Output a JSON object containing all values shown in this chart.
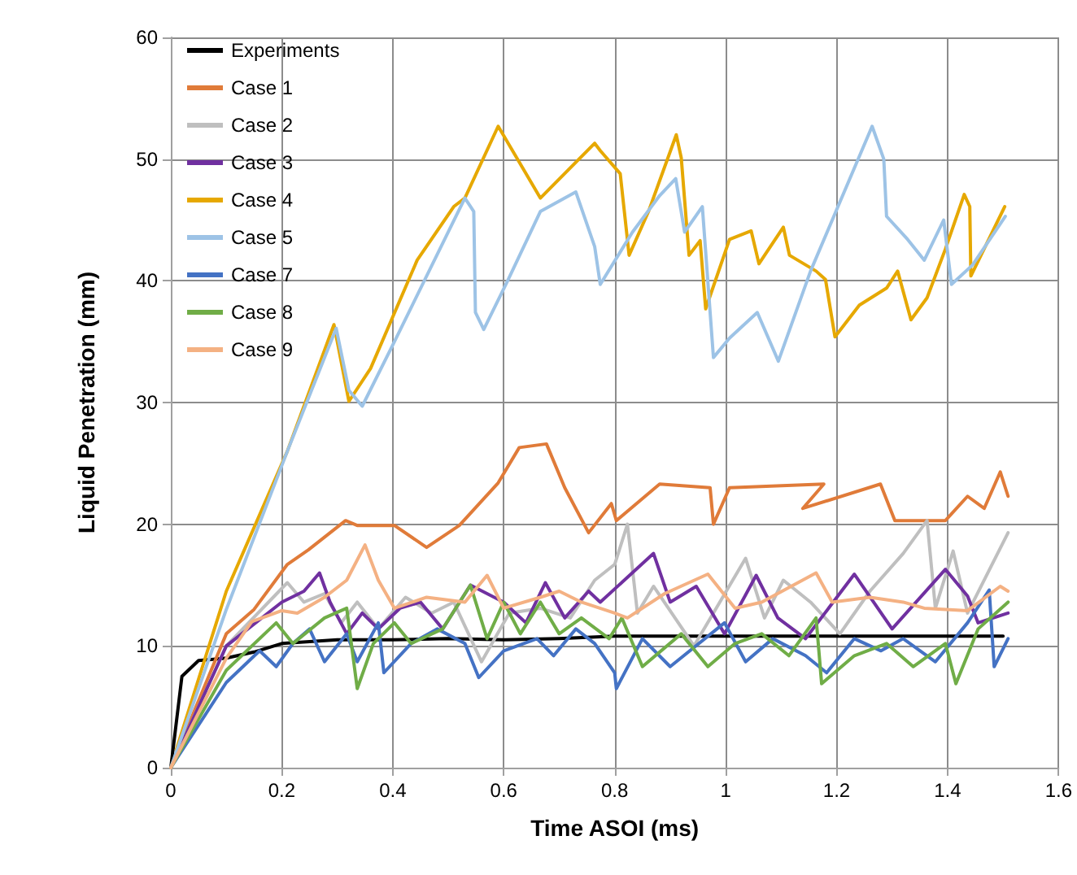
{
  "chart_data": {
    "type": "line",
    "xlabel": "Time ASOI (ms)",
    "ylabel": "Liquid Penetration (mm)",
    "xlim": [
      0,
      1.6
    ],
    "xticks": [
      0,
      0.2,
      0.4,
      0.6,
      0.8,
      1,
      1.2,
      1.4,
      1.6
    ],
    "ylim": [
      0,
      60
    ],
    "yticks": [
      0,
      10,
      20,
      30,
      40,
      50,
      60
    ],
    "grid": true,
    "legend": "top left",
    "marker": "none",
    "line_style": "solid",
    "series": [
      {
        "name": "Experiments",
        "color": "#000000",
        "x": [
          0,
          0.02,
          0.05,
          0.1,
          0.15,
          0.2,
          0.3,
          0.4,
          0.5,
          0.6,
          0.7,
          0.8,
          1.0,
          1.2,
          1.5
        ],
        "values": [
          0,
          7.5,
          8.8,
          9.0,
          9.5,
          10.2,
          10.5,
          10.5,
          10.6,
          10.5,
          10.6,
          10.8,
          10.8,
          10.8,
          10.8
        ]
      },
      {
        "name": "Case 1",
        "color": "#e07b39",
        "x": [
          0,
          0.1,
          0.15,
          0.21,
          0.248,
          0.315,
          0.336,
          0.403,
          0.461,
          0.52,
          0.59,
          0.628,
          0.677,
          0.71,
          0.753,
          0.794,
          0.803,
          0.881,
          0.972,
          0.978,
          1.007,
          1.177,
          1.139,
          1.279,
          1.305,
          1.396,
          1.436,
          1.466,
          1.495,
          1.509
        ],
        "values": [
          0,
          11,
          13,
          16.7,
          17.9,
          20.3,
          19.9,
          19.9,
          18.1,
          19.9,
          23.4,
          26.3,
          26.6,
          23,
          19.3,
          21.7,
          20.3,
          23.3,
          23,
          20,
          23,
          23.3,
          21.3,
          23.3,
          20.3,
          20.3,
          22.3,
          21.3,
          24.3,
          22.3
        ]
      },
      {
        "name": "Case 2",
        "color": "#bfbfbf",
        "x": [
          0,
          0.1,
          0.21,
          0.24,
          0.277,
          0.307,
          0.336,
          0.374,
          0.423,
          0.47,
          0.51,
          0.56,
          0.61,
          0.666,
          0.72,
          0.764,
          0.8,
          0.823,
          0.841,
          0.87,
          0.943,
          1.036,
          1.07,
          1.104,
          1.153,
          1.206,
          1.26,
          1.32,
          1.363,
          1.378,
          1.41,
          1.436,
          1.509
        ],
        "values": [
          0,
          10,
          15.2,
          13.6,
          14.3,
          11.9,
          13.6,
          11.4,
          14,
          12.7,
          13.6,
          8.7,
          12.7,
          13.1,
          12.3,
          15.4,
          16.7,
          20,
          12.7,
          14.9,
          10,
          17.2,
          12.3,
          15.4,
          13.6,
          11,
          14.5,
          17.6,
          20.3,
          13.1,
          17.8,
          12.7,
          19.3
        ]
      },
      {
        "name": "Case 3",
        "color": "#7030a0",
        "x": [
          0,
          0.1,
          0.2,
          0.24,
          0.268,
          0.287,
          0.317,
          0.345,
          0.374,
          0.413,
          0.45,
          0.49,
          0.54,
          0.6,
          0.64,
          0.675,
          0.71,
          0.753,
          0.774,
          0.87,
          0.9,
          0.947,
          0.998,
          1.055,
          1.094,
          1.144,
          1.232,
          1.3,
          1.396,
          1.436,
          1.455,
          1.509
        ],
        "values": [
          0,
          10,
          13.6,
          14.5,
          16,
          13.6,
          11,
          12.7,
          11.4,
          13.1,
          13.6,
          11.4,
          15,
          13.6,
          11.9,
          15.2,
          12.3,
          14.5,
          13.6,
          17.6,
          13.6,
          14.9,
          11,
          15.8,
          12.3,
          10.6,
          15.9,
          11.4,
          16.3,
          14.1,
          11.9,
          12.7
        ]
      },
      {
        "name": "Case 4",
        "color": "#e6a800",
        "x": [
          0.01,
          0.1,
          0.21,
          0.294,
          0.321,
          0.36,
          0.444,
          0.51,
          0.53,
          0.59,
          0.666,
          0.764,
          0.774,
          0.81,
          0.826,
          0.861,
          0.911,
          0.92,
          0.934,
          0.954,
          0.964,
          1.007,
          1.046,
          1.06,
          1.104,
          1.115,
          1.163,
          1.18,
          1.197,
          1.241,
          1.29,
          1.31,
          1.334,
          1.363,
          1.396,
          1.43,
          1.44,
          1.442,
          1.503
        ],
        "values": [
          1.5,
          14.5,
          26,
          36.4,
          30.1,
          32.8,
          41.7,
          46.1,
          46.8,
          52.7,
          46.8,
          51.3,
          50.7,
          48.8,
          42.1,
          45.7,
          52,
          50.1,
          42.1,
          43.3,
          37.7,
          43.4,
          44.1,
          41.4,
          44.4,
          42.1,
          40.8,
          40.1,
          35.4,
          38,
          39.4,
          40.8,
          36.8,
          38.6,
          42.6,
          47.1,
          46.1,
          40.4,
          46.1
        ]
      },
      {
        "name": "Case 5",
        "color": "#9dc3e6",
        "x": [
          0,
          0.1,
          0.21,
          0.298,
          0.321,
          0.345,
          0.403,
          0.53,
          0.546,
          0.549,
          0.564,
          0.607,
          0.666,
          0.73,
          0.764,
          0.774,
          0.832,
          0.881,
          0.91,
          0.926,
          0.958,
          0.978,
          1.007,
          1.057,
          1.095,
          1.153,
          1.264,
          1.285,
          1.29,
          1.328,
          1.358,
          1.393,
          1.407,
          1.445,
          1.504
        ],
        "values": [
          0,
          13,
          26,
          36.1,
          31,
          29.7,
          35,
          46.8,
          45.7,
          37.4,
          36,
          40,
          45.7,
          47.3,
          42.8,
          39.7,
          44,
          47,
          48.4,
          44,
          46.1,
          33.7,
          35.3,
          37.4,
          33.4,
          40.8,
          52.7,
          50,
          45.3,
          43.4,
          41.7,
          45,
          39.7,
          41.3,
          45.3
        ]
      },
      {
        "name": "Case 7",
        "color": "#4472c4",
        "x": [
          0,
          0.1,
          0.16,
          0.19,
          0.22,
          0.25,
          0.277,
          0.317,
          0.336,
          0.374,
          0.384,
          0.433,
          0.48,
          0.53,
          0.555,
          0.6,
          0.66,
          0.69,
          0.73,
          0.764,
          0.8,
          0.803,
          0.85,
          0.9,
          0.998,
          1.036,
          1.085,
          1.144,
          1.182,
          1.232,
          1.28,
          1.32,
          1.378,
          1.436,
          1.475,
          1.484,
          1.509
        ],
        "values": [
          0,
          7,
          9.6,
          8.3,
          10.2,
          11.4,
          8.7,
          11,
          8.7,
          11.9,
          7.8,
          10.2,
          11.4,
          10.2,
          7.4,
          9.6,
          10.6,
          9.2,
          11.4,
          10.2,
          7.8,
          6.5,
          10.6,
          8.3,
          11.9,
          8.7,
          10.6,
          9.2,
          7.8,
          10.6,
          9.6,
          10.6,
          8.7,
          11.9,
          14.6,
          8.3,
          10.6
        ]
      },
      {
        "name": "Case 8",
        "color": "#70ad47",
        "x": [
          0,
          0.1,
          0.19,
          0.22,
          0.277,
          0.317,
          0.336,
          0.365,
          0.403,
          0.433,
          0.49,
          0.54,
          0.57,
          0.6,
          0.63,
          0.666,
          0.7,
          0.74,
          0.79,
          0.813,
          0.85,
          0.92,
          0.968,
          1.017,
          1.065,
          1.114,
          1.163,
          1.173,
          1.232,
          1.29,
          1.338,
          1.396,
          1.415,
          1.455,
          1.509
        ],
        "values": [
          0,
          8,
          11.9,
          10.2,
          12.3,
          13.1,
          6.5,
          10.2,
          11.9,
          10.2,
          11.4,
          15,
          10.6,
          13.6,
          11,
          13.6,
          11,
          12.3,
          10.6,
          12.3,
          8.3,
          11,
          8.3,
          10.2,
          11,
          9.2,
          12.3,
          6.9,
          9.2,
          10.2,
          8.3,
          10.2,
          6.9,
          11.4,
          13.6
        ]
      },
      {
        "name": "Case 9",
        "color": "#f4b183",
        "x": [
          0,
          0.1,
          0.146,
          0.2,
          0.228,
          0.277,
          0.317,
          0.35,
          0.374,
          0.403,
          0.461,
          0.53,
          0.57,
          0.6,
          0.666,
          0.7,
          0.74,
          0.8,
          0.823,
          0.89,
          0.968,
          1.017,
          1.065,
          1.163,
          1.192,
          1.26,
          1.32,
          1.358,
          1.436,
          1.495,
          1.509
        ],
        "values": [
          0,
          9,
          12,
          12.9,
          12.7,
          14,
          15.4,
          18.3,
          15.4,
          13.1,
          14,
          13.6,
          15.8,
          13.1,
          14,
          14.5,
          13.6,
          12.7,
          12.3,
          14.3,
          15.9,
          13.1,
          13.6,
          16,
          13.6,
          14,
          13.6,
          13.1,
          12.9,
          14.9,
          14.5
        ]
      }
    ]
  }
}
